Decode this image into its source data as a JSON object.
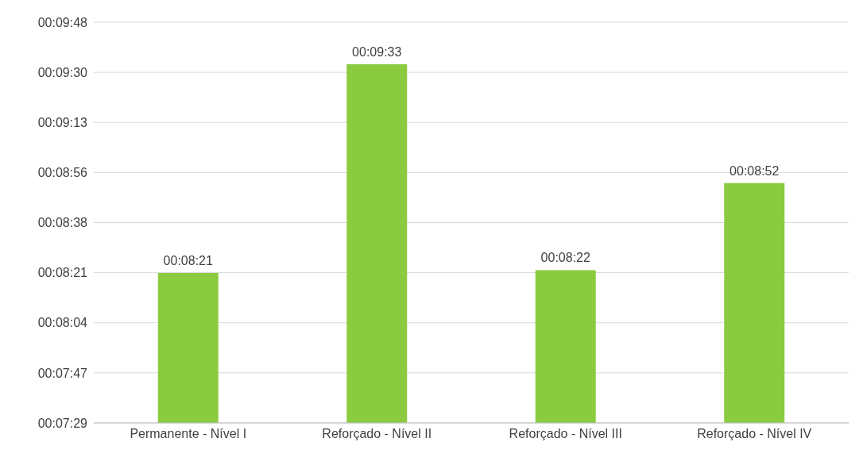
{
  "chart_data": {
    "type": "bar",
    "categories": [
      "Permanente - Nível I",
      "Reforçado - Nível II",
      "Reforçado - Nível III",
      "Reforçado - Nível IV"
    ],
    "values": [
      501,
      573,
      502,
      532
    ],
    "value_labels": [
      "00:08:21",
      "00:09:33",
      "00:08:22",
      "00:08:52"
    ],
    "color": "#8bcb3f",
    "ylim": [
      449.28,
      587.52
    ],
    "yticks": [
      {
        "value": 449.28,
        "label": "00:07:29"
      },
      {
        "value": 466.56,
        "label": "00:07:47"
      },
      {
        "value": 483.84,
        "label": "00:08:04"
      },
      {
        "value": 501.12,
        "label": "00:08:21"
      },
      {
        "value": 518.4,
        "label": "00:08:38"
      },
      {
        "value": 535.68,
        "label": "00:08:56"
      },
      {
        "value": 552.96,
        "label": "00:09:13"
      },
      {
        "value": 570.24,
        "label": "00:09:30"
      },
      {
        "value": 587.52,
        "label": "00:09:48"
      }
    ],
    "grid": "y"
  }
}
